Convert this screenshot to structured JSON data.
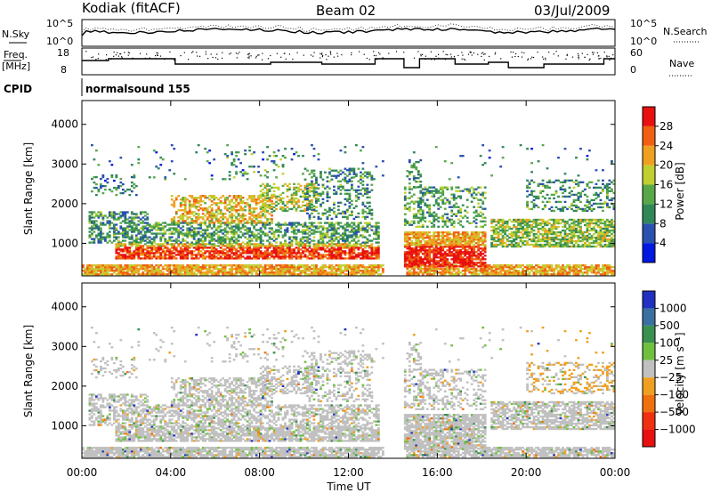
{
  "header": {
    "station": "Kodiak (fitACF)",
    "beam": "Beam 02",
    "date": "03/Jul/2009"
  },
  "top_panels": {
    "nsky_label": "N.Sky",
    "nsky_ticks": [
      "10^5",
      "10^0"
    ],
    "nsearch_label": "N.Search",
    "nsearch_ticks": [
      "10^5",
      "10^0"
    ],
    "freq_label_line1": "Freq.",
    "freq_label_line2": "[MHz]",
    "freq_ticks": [
      "18",
      "8"
    ],
    "nave_label": "Nave",
    "nave_ticks": [
      "60",
      "0"
    ],
    "cpid_label": "CPID",
    "cpid_value": "normalsound 155"
  },
  "chart_data": [
    {
      "type": "heatmap",
      "panel": "power",
      "ylabel": "Slant Range [km]",
      "xlabel": "",
      "y_ticks": [
        "1000",
        "2000",
        "3000",
        "4000"
      ],
      "ylim": [
        180,
        4600
      ],
      "xlim": [
        "00:00",
        "24:00"
      ],
      "colorbar": {
        "label": "Power [dB]",
        "ticks": [
          "4",
          "8",
          "12",
          "16",
          "20",
          "24",
          "28"
        ],
        "colors": [
          "#0018e0",
          "#2a50b0",
          "#308858",
          "#58a848",
          "#c0d030",
          "#f0a020",
          "#f06010",
          "#e81010"
        ]
      },
      "data_gap": [
        "13:30",
        "14:30"
      ]
    },
    {
      "type": "heatmap",
      "panel": "velocity",
      "ylabel": "Slant Range [km]",
      "xlabel": "Time UT",
      "x_ticks": [
        "00:00",
        "04:00",
        "08:00",
        "12:00",
        "16:00",
        "20:00",
        "00:00"
      ],
      "y_ticks": [
        "1000",
        "2000",
        "3000",
        "4000"
      ],
      "ylim": [
        180,
        4600
      ],
      "xlim": [
        "00:00",
        "24:00"
      ],
      "colorbar": {
        "label": "Velocity [m s⁻¹]",
        "ticks": [
          "1000",
          "500",
          "100",
          "25",
          "−25",
          "−100",
          "−500",
          "−1000"
        ],
        "colors": [
          "#2030c0",
          "#3a70a0",
          "#3a9050",
          "#70c040",
          "#c0c0c0",
          "#f0a020",
          "#f07010",
          "#f03010",
          "#e81010"
        ]
      },
      "data_gap": [
        "13:30",
        "14:30"
      ]
    }
  ]
}
